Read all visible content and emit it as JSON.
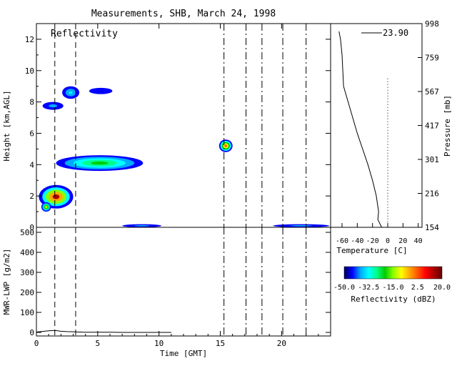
{
  "title": "Measurements, SHB, March 24, 1998",
  "chart_data": [
    {
      "type": "heatmap",
      "panel_label": "Reflectivity",
      "ylabel": "Height [km,AGL]",
      "xlim": [
        0,
        24
      ],
      "ylim": [
        0,
        13
      ],
      "yticks": [
        0,
        2,
        4,
        6,
        8,
        10,
        12
      ],
      "vertical_lines_dashed": [
        1.5,
        3.2
      ],
      "vertical_lines_dashdot": [
        15.3,
        17.1,
        18.4,
        20.1,
        22.0
      ],
      "echoes": [
        {
          "t0": 0.2,
          "t1": 3.0,
          "z0": 1.2,
          "z1": 2.7,
          "peak_dbz": 12
        },
        {
          "t0": 0.4,
          "t1": 1.2,
          "z0": 1.0,
          "z1": 1.6,
          "peak_dbz": -10
        },
        {
          "t0": 1.6,
          "t1": 8.7,
          "z0": 3.6,
          "z1": 4.6,
          "peak_dbz": -20
        },
        {
          "t0": 2.1,
          "t1": 3.5,
          "z0": 8.2,
          "z1": 9.0,
          "peak_dbz": -35
        },
        {
          "t0": 0.5,
          "t1": 2.2,
          "z0": 7.5,
          "z1": 8.0,
          "peak_dbz": -38
        },
        {
          "t0": 4.3,
          "t1": 6.2,
          "z0": 8.5,
          "z1": 8.9,
          "peak_dbz": -45
        },
        {
          "t0": 14.9,
          "t1": 16.0,
          "z0": 4.8,
          "z1": 5.6,
          "peak_dbz": 0
        },
        {
          "t0": 7.0,
          "t1": 10.2,
          "z0": 0.0,
          "z1": 0.2,
          "peak_dbz": -40
        },
        {
          "t0": 19.3,
          "t1": 23.9,
          "z0": 0.0,
          "z1": 0.2,
          "peak_dbz": -40
        }
      ]
    },
    {
      "type": "line",
      "ylabel": "MWR-LWP [g/m2]",
      "xlabel": "Time [GMT]",
      "xlim": [
        0,
        24
      ],
      "ylim": [
        0,
        500
      ],
      "xticks": [
        0,
        5,
        10,
        15,
        20
      ],
      "yticks": [
        0,
        100,
        200,
        300,
        400,
        500
      ],
      "x": [
        0,
        0.5,
        1,
        1.5,
        2,
        2.5,
        3,
        3.5,
        4,
        5,
        6,
        7,
        8,
        9,
        10,
        11
      ],
      "y": [
        2,
        5,
        8,
        10,
        6,
        4,
        3,
        2,
        1,
        1,
        1,
        0,
        0,
        0,
        0,
        0
      ]
    },
    {
      "type": "line",
      "annotation": "23.90",
      "xlabel": "Temperature [C]",
      "ylabel": "Pressure [mb]",
      "xlim": [
        -75,
        45
      ],
      "xticks": [
        -60,
        -40,
        -20,
        0,
        20,
        40
      ],
      "pressure_ticks": [
        "154",
        "216",
        "301",
        "417",
        "567",
        "759",
        "998"
      ],
      "height_km": [
        0,
        0.5,
        1,
        2,
        3,
        4,
        5,
        6,
        7,
        8,
        9,
        10,
        11,
        12,
        12.5
      ],
      "temperature_c": [
        -8,
        -13,
        -12,
        -15,
        -20,
        -26,
        -33,
        -40,
        -46,
        -52,
        -58,
        -59,
        -60,
        -62,
        -64
      ]
    }
  ],
  "colorbar": {
    "ticks": [
      "-50.0",
      "-32.5",
      "-15.0",
      "2.5",
      "20.0"
    ],
    "label": "Reflectivity (dBZ)",
    "vmin": -50,
    "vmax": 20,
    "colors": [
      "#00005a",
      "#0000ff",
      "#00aaff",
      "#00ffff",
      "#00ff88",
      "#00cc00",
      "#88ff00",
      "#ffff00",
      "#ffaa00",
      "#ff5500",
      "#ff0000",
      "#aa0000",
      "#660000"
    ]
  }
}
